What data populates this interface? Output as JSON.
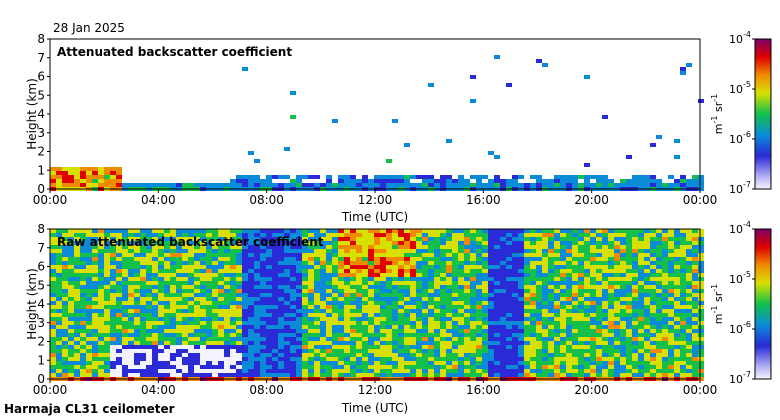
{
  "date": "28 Jan 2025",
  "footer": "Harmaja CL31 ceilometer",
  "chart_data": [
    {
      "type": "heatmap",
      "title": "Attenuated backscatter coefficient",
      "xlabel": "Time (UTC)",
      "ylabel": "Height (km)",
      "x_ticks": [
        "00:00",
        "04:00",
        "08:00",
        "12:00",
        "16:00",
        "20:00",
        "00:00"
      ],
      "xlim_hours": [
        0,
        24
      ],
      "y_ticks": [
        "0",
        "1",
        "2",
        "3",
        "4",
        "5",
        "6",
        "7",
        "8"
      ],
      "ylim_km": [
        0,
        8
      ],
      "colorbar": {
        "labels": [
          "10",
          "10",
          "10",
          "10"
        ],
        "exponents": [
          "-4",
          "-5",
          "-6",
          "-7"
        ],
        "unit_prefix": "m",
        "unit_mid": " sr",
        "unit_exp": "-1",
        "range": [
          1e-07,
          0.0001
        ]
      }
    },
    {
      "type": "heatmap",
      "title": "Raw attenuated backscatter coefficient",
      "xlabel": "Time (UTC)",
      "ylabel": "Height (km)",
      "x_ticks": [
        "00:00",
        "04:00",
        "08:00",
        "12:00",
        "16:00",
        "20:00",
        "00:00"
      ],
      "xlim_hours": [
        0,
        24
      ],
      "y_ticks": [
        "0",
        "1",
        "2",
        "3",
        "4",
        "5",
        "6",
        "7",
        "8"
      ],
      "ylim_km": [
        0,
        8
      ],
      "colorbar": {
        "labels": [
          "10",
          "10",
          "10",
          "10"
        ],
        "exponents": [
          "-4",
          "-5",
          "-6",
          "-7"
        ],
        "unit_prefix": "m",
        "unit_mid": " sr",
        "unit_exp": "-1",
        "range": [
          1e-07,
          0.0001
        ]
      }
    }
  ]
}
